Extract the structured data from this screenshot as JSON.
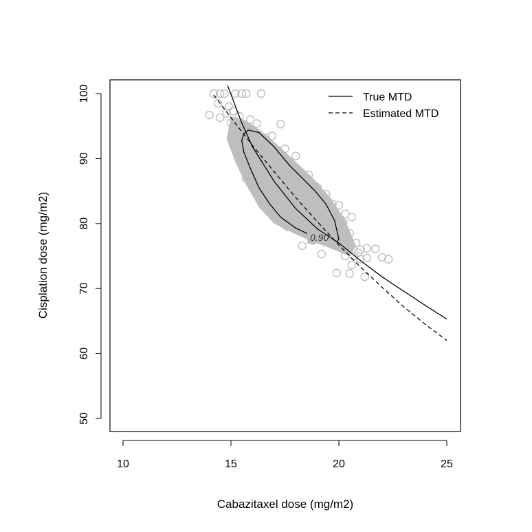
{
  "chart_data": {
    "type": "scatter",
    "title": "",
    "xlabel": "Cabazitaxel dose (mg/m2)",
    "ylabel": "Cisplation dose (mg/m2)",
    "xlim": [
      9.4,
      25.6
    ],
    "ylim": [
      48,
      102
    ],
    "xticks": [
      10,
      15,
      20,
      25
    ],
    "yticks": [
      50,
      60,
      70,
      80,
      90,
      100
    ],
    "grid": false,
    "legend_position": "top-right",
    "legend": [
      {
        "label": "True MTD",
        "style": "solid"
      },
      {
        "label": "Estimated MTD",
        "style": "dashed"
      }
    ],
    "colors": {
      "points": "#bebebe",
      "lines": "#000000"
    },
    "series": [
      {
        "name": "True MTD",
        "style": "solid",
        "x": [
          14.85,
          15.5,
          16,
          17,
          18,
          19,
          20,
          21,
          22,
          23,
          24,
          25
        ],
        "y": [
          101.2,
          95.5,
          91.8,
          86.5,
          82.3,
          79.2,
          77.0,
          74.3,
          71.8,
          69.6,
          67.4,
          65.3
        ]
      },
      {
        "name": "Estimated MTD",
        "style": "dashed",
        "x": [
          14.2,
          15,
          16,
          17,
          18,
          19,
          20,
          21,
          22,
          23,
          24,
          25
        ],
        "y": [
          99.8,
          96.3,
          92.0,
          88.0,
          84.0,
          80.3,
          76.7,
          73.3,
          70.2,
          67.2,
          64.5,
          62.0
        ]
      }
    ],
    "contour": {
      "label": "0.90",
      "x": [
        15.6,
        15.8,
        16.3,
        17.0,
        17.7,
        18.3,
        18.9,
        19.4,
        19.8,
        20.0,
        19.9,
        19.4,
        18.7,
        18.0,
        17.3,
        16.8,
        16.3,
        15.9,
        15.6,
        15.5
      ],
      "y": [
        93.8,
        94.4,
        94.0,
        91.8,
        89.0,
        87.0,
        85.0,
        83.0,
        80.5,
        77.6,
        77.2,
        77.6,
        78.2,
        79.3,
        81.0,
        83.0,
        85.5,
        88.5,
        91.0,
        92.8
      ]
    },
    "points": {
      "x": [
        14.2,
        14.5,
        14.7,
        15.2,
        15.5,
        15.7,
        14.0,
        14.5,
        16.4,
        14.4,
        14.9,
        15.1,
        15.4,
        15.9,
        16.2,
        15.3,
        15.0,
        14.8,
        15.6,
        16.0,
        16.6,
        17.3,
        16.9,
        17.5,
        18.0,
        17.8,
        18.6,
        19.0,
        19.4,
        19.7,
        20.0,
        20.3,
        20.6,
        20.2,
        19.9,
        20.5,
        20.8,
        21.0,
        21.3,
        21.7,
        22.0,
        22.3,
        21.3,
        21.2,
        20.5,
        19.9,
        20.6,
        19.2,
        18.3,
        18.8,
        17.6,
        17.0,
        16.5,
        16.0,
        15.8,
        16.2,
        16.7,
        17.2,
        17.6,
        18.1,
        18.5,
        18.9,
        19.3,
        19.6,
        20.1,
        20.4,
        20.7,
        19.0,
        18.4,
        17.9,
        17.4,
        16.8,
        16.3,
        15.9,
        15.5,
        15.2,
        17.0,
        17.8,
        18.7,
        19.5,
        16.6,
        17.3,
        18.2,
        19.1,
        20.0,
        20.9,
        15.7,
        16.4,
        21.0,
        20.3
      ],
      "y": [
        100,
        100,
        100,
        100,
        100,
        100,
        96.7,
        96.3,
        100,
        98.5,
        98.0,
        97.3,
        96.5,
        96.0,
        95.4,
        94.2,
        95.5,
        97.0,
        93.0,
        92.8,
        93.2,
        95.3,
        93.5,
        91.5,
        90.4,
        89.0,
        87.5,
        85.6,
        84.5,
        83.0,
        82.8,
        81.5,
        81.0,
        80.2,
        79.5,
        78.5,
        77.0,
        76.0,
        76.2,
        76.1,
        74.8,
        74.5,
        74.7,
        71.8,
        72.3,
        72.4,
        73.6,
        75.3,
        76.6,
        77.4,
        79.5,
        81.0,
        83.0,
        85.5,
        88.0,
        90.0,
        88.5,
        86.0,
        84.0,
        83.0,
        82.0,
        80.5,
        79.0,
        78.5,
        77.0,
        76.5,
        75.0,
        82.5,
        84.5,
        86.5,
        88.5,
        90.5,
        92.0,
        91.0,
        90.0,
        93.8,
        84.5,
        85.0,
        81.0,
        80.0,
        87.5,
        87.0,
        86.0,
        84.5,
        79.5,
        75.5,
        87.0,
        86.0,
        74.5,
        75.0
      ]
    }
  }
}
